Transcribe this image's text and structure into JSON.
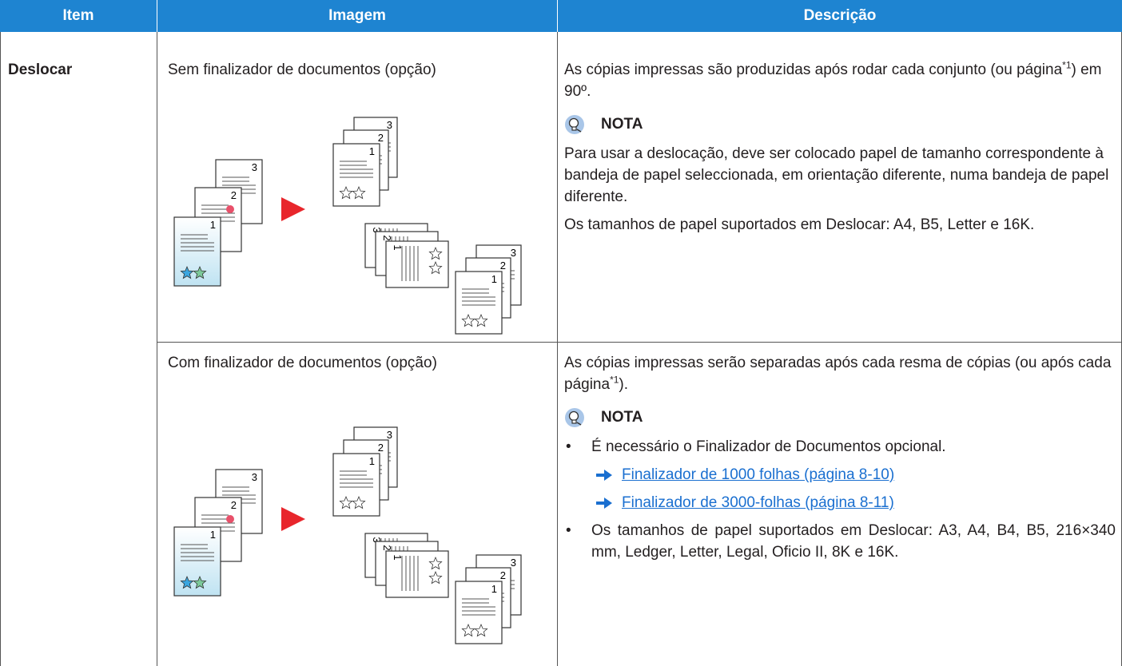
{
  "header": {
    "columns": [
      "Item",
      "Imagem",
      "Descrição"
    ]
  },
  "table": {
    "item": "Deslocar",
    "rows": [
      {
        "image_caption": "Sem finalizador de documentos (opção)",
        "intro": [
          "As cópias impressas são produzidas após rodar cada conjunto (ou página",
          "*1",
          ") em 90º."
        ],
        "note_title": "NOTA",
        "note_paragraphs": [
          "Para usar a deslocação, deve ser colocado papel de tamanho correspondente à bandeja de papel seleccionada, em orientação diferente, numa bandeja de papel diferente.",
          "Os tamanhos de papel suportados em Deslocar: A4, B5, Letter e 16K."
        ]
      },
      {
        "image_caption": "Com finalizador de documentos (opção)",
        "intro": [
          "As cópias impressas serão separadas após cada resma de cópias (ou após cada página",
          "*1",
          ")."
        ],
        "note_title": "NOTA",
        "bullets": [
          {
            "text": "É necessário o Finalizador de Documentos opcional.",
            "links": [
              "Finalizador de 1000 folhas (página 8-10)",
              "Finalizador de 3000-folhas (página 8-11)"
            ]
          },
          {
            "text": "Os tamanhos de papel suportados em Deslocar: A3, A4, B4, B5, 216×340  mm, Ledger, Letter, Legal, Oficio  II, 8K e 16K."
          }
        ]
      }
    ]
  },
  "figure_labels": [
    "1",
    "2",
    "3"
  ]
}
